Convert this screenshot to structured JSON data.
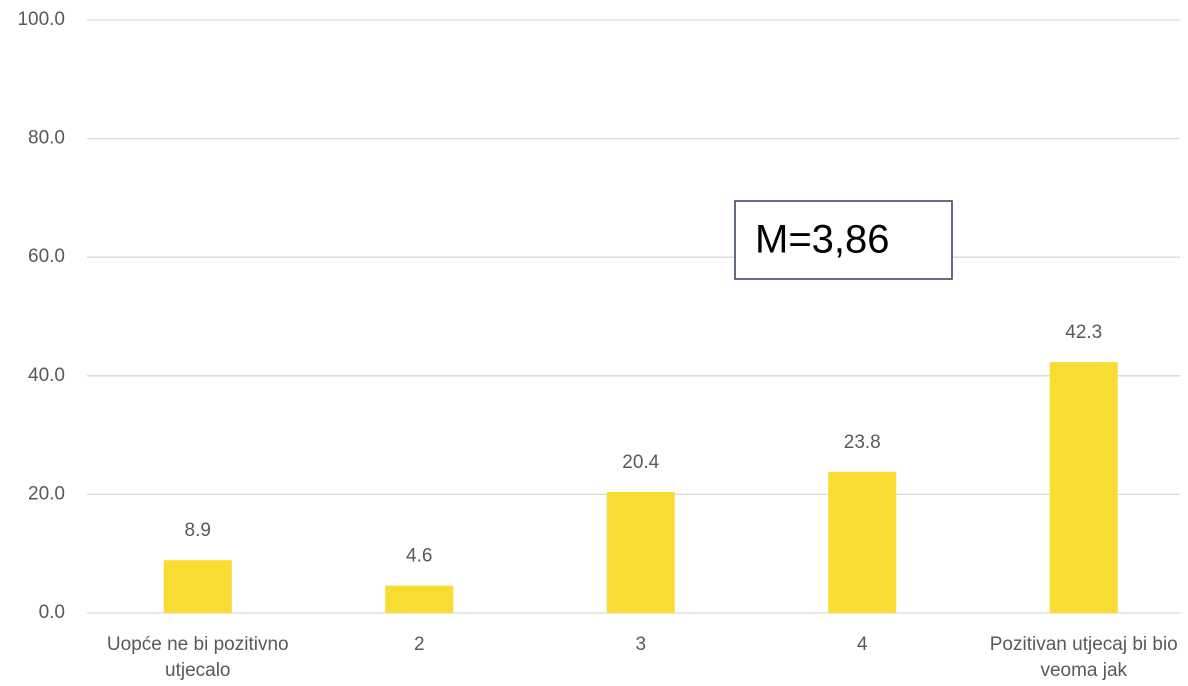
{
  "chart_data": {
    "type": "bar",
    "categories": [
      "Uopće ne bi pozitivno utjecalo",
      "2",
      "3",
      "4",
      "Pozitivan utjecaj bi bio veoma jak"
    ],
    "values": [
      8.9,
      4.6,
      20.4,
      23.8,
      42.3
    ],
    "color": "#f8dc32",
    "ylim": [
      0,
      100
    ],
    "yticks": [
      {
        "value": 0,
        "label": "0.0"
      },
      {
        "value": 20,
        "label": "20.0"
      },
      {
        "value": 40,
        "label": "40.0"
      },
      {
        "value": 60,
        "label": "60.0"
      },
      {
        "value": 80,
        "label": "80.0"
      },
      {
        "value": 100,
        "label": "100.0"
      }
    ],
    "grid": true,
    "annotation": "M=3,86"
  }
}
